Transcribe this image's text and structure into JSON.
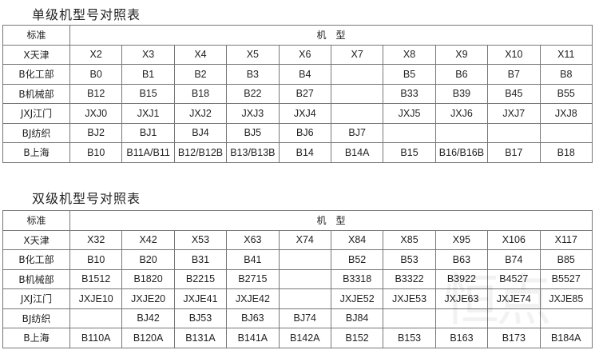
{
  "tables": [
    {
      "title": "单级机型号对照表",
      "header": {
        "standard": "标准",
        "model": "机　型"
      },
      "rows": [
        {
          "label": "X天津",
          "cells": [
            "X2",
            "X3",
            "X4",
            "X5",
            "X6",
            "X7",
            "X8",
            "X9",
            "X10",
            "X11"
          ]
        },
        {
          "label": "B化工部",
          "cells": [
            "B0",
            "B1",
            "B2",
            "B3",
            "B4",
            "",
            "B5",
            "B6",
            "B7",
            "B8"
          ]
        },
        {
          "label": "B机械部",
          "cells": [
            "B12",
            "B15",
            "B18",
            "B22",
            "B27",
            "",
            "B33",
            "B39",
            "B45",
            "B55"
          ]
        },
        {
          "label": "JXJ江门",
          "cells": [
            "JXJ0",
            "JXJ1",
            "JXJ2",
            "JXJ3",
            "JXJ4",
            "",
            "JXJ5",
            "JXJ6",
            "JXJ7",
            "JXJ8"
          ]
        },
        {
          "label": "BJ纺织",
          "cells": [
            "BJ2",
            "BJ1",
            "BJ4",
            "BJ5",
            "BJ6",
            "BJ7",
            "",
            "",
            "",
            ""
          ]
        },
        {
          "label": "B上海",
          "cells": [
            "B10",
            "B11A/B11",
            "B12/B12B",
            "B13/B13B",
            "B14",
            "B14A",
            "B15",
            "B16/B16B",
            "B17",
            "B18"
          ]
        }
      ]
    },
    {
      "title": "双级机型号对照表",
      "header": {
        "standard": "标准",
        "model": "机　型"
      },
      "rows": [
        {
          "label": "X天津",
          "cells": [
            "X32",
            "X42",
            "X53",
            "X63",
            "X74",
            "X84",
            "X85",
            "X95",
            "X106",
            "X117"
          ]
        },
        {
          "label": "B化工部",
          "cells": [
            "B10",
            "B20",
            "B31",
            "B41",
            "",
            "B52",
            "B53",
            "B63",
            "B74",
            "B85"
          ]
        },
        {
          "label": "B机械部",
          "cells": [
            "B1512",
            "B1820",
            "B2215",
            "B2715",
            "",
            "B3318",
            "B3322",
            "B3922",
            "B4527",
            "B5527"
          ]
        },
        {
          "label": "JXJ江门",
          "cells": [
            "JXJE10",
            "JXJE20",
            "JXJE41",
            "JXJE42",
            "",
            "JXJE52",
            "JXJE53",
            "JXJE63",
            "JXJE74",
            "JXJE85"
          ]
        },
        {
          "label": "BJ纺织",
          "cells": [
            "",
            "BJ42",
            "BJ53",
            "BJ63",
            "BJ74",
            "BJ84",
            "",
            "",
            "",
            ""
          ]
        },
        {
          "label": "B上海",
          "cells": [
            "B110A",
            "B120A",
            "B131A",
            "B141A",
            "B142A",
            "B152",
            "B153",
            "B163",
            "B173",
            "B184A"
          ]
        }
      ]
    }
  ],
  "watermark": "恒点"
}
